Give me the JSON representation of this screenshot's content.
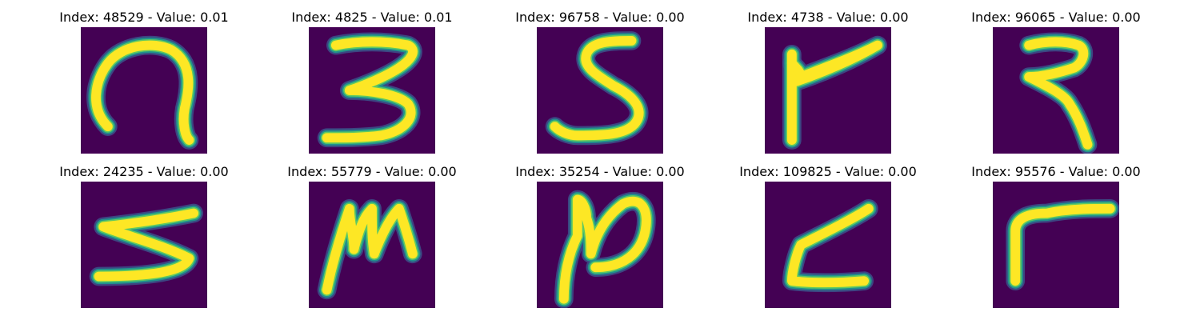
{
  "colors": {
    "background": "#440154",
    "stroke_core": "#fde725",
    "stroke_mid": "#5ec962",
    "stroke_edge": "#21918c",
    "stroke_outer": "#3b528b"
  },
  "panels": [
    {
      "title": "Index: 48529 - Value: 0.01",
      "glyph": "hook-stroke"
    },
    {
      "title": "Index: 4825 - Value: 0.01",
      "glyph": "three-stroke"
    },
    {
      "title": "Index: 96758 - Value: 0.00",
      "glyph": "s-stroke"
    },
    {
      "title": "Index: 4738 - Value: 0.00",
      "glyph": "flag-stroke"
    },
    {
      "title": "Index: 96065 - Value: 0.00",
      "glyph": "hook-three-stroke"
    },
    {
      "title": "Index: 24235 - Value: 0.00",
      "glyph": "zigzag-stroke"
    },
    {
      "title": "Index: 55779 - Value: 0.00",
      "glyph": "m-stroke"
    },
    {
      "title": "Index: 35254 - Value: 0.00",
      "glyph": "n-loop-stroke"
    },
    {
      "title": "Index: 109825 - Value: 0.00",
      "glyph": "z-stroke"
    },
    {
      "title": "Index: 95576 - Value: 0.00",
      "glyph": "corner-stroke"
    }
  ]
}
